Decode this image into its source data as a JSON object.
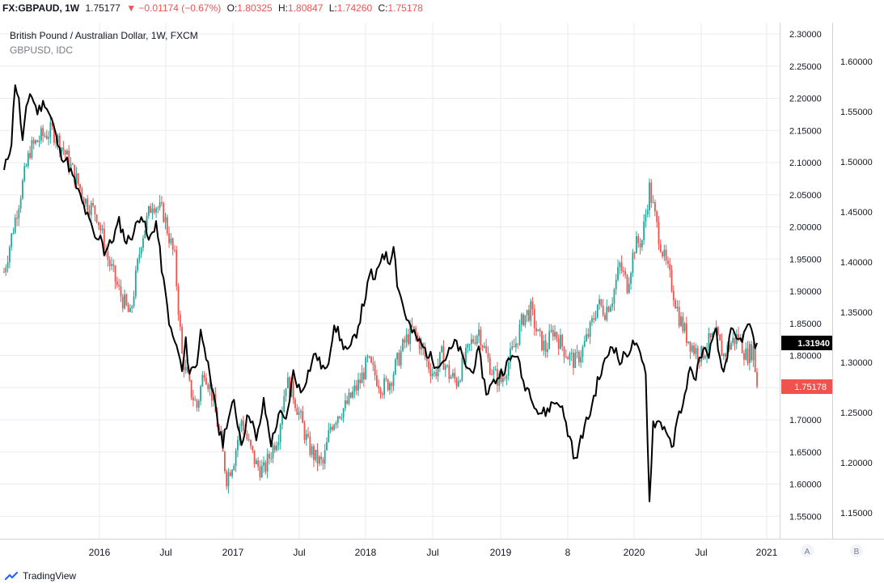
{
  "header": {
    "symbol": "FX:GBPAUD, 1W",
    "last": "1.75177",
    "change": "▼ −0.01174 (−0.67%)",
    "o_label": "O:",
    "o_value": "1.80325",
    "h_label": "H:",
    "h_value": "1.80847",
    "l_label": "L:",
    "l_value": "1.74260",
    "c_label": "C:",
    "c_value": "1.75178"
  },
  "legend": {
    "main_series": "British Pound / Australian Dollar, 1W, FXCM",
    "compare_series": "GBPUSD, IDC"
  },
  "badges": {
    "gbpusd_last": "1.31940",
    "gbpaud_last": "1.75178"
  },
  "scale_buttons": {
    "a": "A",
    "b": "B"
  },
  "branding": {
    "name": "TradingView"
  },
  "colors": {
    "up": "#26a69a",
    "down": "#ef5350",
    "compare": "#000000",
    "grid": "#e9ebf0"
  },
  "chart_data": {
    "type": "candlestick+line",
    "x_ticks": [
      "2016",
      "Jul",
      "2017",
      "Jul",
      "2018",
      "Jul",
      "2019",
      "8",
      "2020",
      "Jul",
      "2021"
    ],
    "left_axis": {
      "series": "GBPAUD",
      "ticks": [
        "2.30000",
        "2.25000",
        "2.20000",
        "2.15000",
        "2.10000",
        "2.05000",
        "2.00000",
        "1.95000",
        "1.90000",
        "1.85000",
        "1.80000",
        "1.75000",
        "1.70000",
        "1.65000",
        "1.60000",
        "1.55000"
      ],
      "range": [
        1.53,
        2.32
      ]
    },
    "right_axis": {
      "series": "GBPUSD",
      "ticks": [
        "1.60000",
        "1.55000",
        "1.50000",
        "1.45000",
        "1.40000",
        "1.35000",
        "1.30000",
        "1.25000",
        "1.20000",
        "1.15000"
      ],
      "range": [
        1.128,
        1.68
      ]
    },
    "gbpaud_weekly_close_anchors": [
      [
        0,
        1.93
      ],
      [
        8,
        2.04
      ],
      [
        14,
        2.12
      ],
      [
        20,
        2.14
      ],
      [
        26,
        2.15
      ],
      [
        32,
        2.12
      ],
      [
        38,
        2.08
      ],
      [
        44,
        2.04
      ],
      [
        50,
        2.02
      ],
      [
        56,
        1.95
      ],
      [
        62,
        1.9
      ],
      [
        68,
        1.86
      ],
      [
        74,
        1.98
      ],
      [
        80,
        2.04
      ],
      [
        86,
        2.02
      ],
      [
        92,
        1.95
      ],
      [
        96,
        1.8
      ],
      [
        100,
        1.75
      ],
      [
        104,
        1.72
      ],
      [
        108,
        1.78
      ],
      [
        112,
        1.74
      ],
      [
        116,
        1.68
      ],
      [
        120,
        1.61
      ],
      [
        124,
        1.64
      ],
      [
        128,
        1.7
      ],
      [
        132,
        1.66
      ],
      [
        136,
        1.63
      ],
      [
        140,
        1.62
      ],
      [
        144,
        1.65
      ],
      [
        148,
        1.68
      ],
      [
        152,
        1.76
      ],
      [
        156,
        1.74
      ],
      [
        160,
        1.7
      ],
      [
        164,
        1.66
      ],
      [
        168,
        1.64
      ],
      [
        172,
        1.63
      ],
      [
        176,
        1.69
      ],
      [
        180,
        1.71
      ],
      [
        184,
        1.72
      ],
      [
        188,
        1.74
      ],
      [
        192,
        1.76
      ],
      [
        196,
        1.79
      ],
      [
        200,
        1.77
      ],
      [
        204,
        1.75
      ],
      [
        208,
        1.76
      ],
      [
        212,
        1.79
      ],
      [
        216,
        1.82
      ],
      [
        220,
        1.84
      ],
      [
        224,
        1.82
      ],
      [
        228,
        1.79
      ],
      [
        232,
        1.77
      ],
      [
        236,
        1.8
      ],
      [
        240,
        1.77
      ],
      [
        244,
        1.76
      ],
      [
        248,
        1.79
      ],
      [
        252,
        1.82
      ],
      [
        256,
        1.84
      ],
      [
        260,
        1.8
      ],
      [
        264,
        1.77
      ],
      [
        268,
        1.76
      ],
      [
        272,
        1.79
      ],
      [
        276,
        1.82
      ],
      [
        280,
        1.86
      ],
      [
        284,
        1.87
      ],
      [
        288,
        1.83
      ],
      [
        292,
        1.81
      ],
      [
        296,
        1.84
      ],
      [
        300,
        1.82
      ],
      [
        304,
        1.8
      ],
      [
        308,
        1.79
      ],
      [
        312,
        1.81
      ],
      [
        316,
        1.84
      ],
      [
        320,
        1.88
      ],
      [
        324,
        1.87
      ],
      [
        328,
        1.89
      ],
      [
        332,
        1.94
      ],
      [
        336,
        1.91
      ],
      [
        340,
        1.97
      ],
      [
        344,
        1.98
      ],
      [
        348,
        2.06
      ],
      [
        352,
        2.0
      ],
      [
        356,
        1.95
      ],
      [
        360,
        1.91
      ],
      [
        364,
        1.86
      ],
      [
        368,
        1.83
      ],
      [
        372,
        1.81
      ],
      [
        376,
        1.8
      ],
      [
        380,
        1.82
      ],
      [
        384,
        1.83
      ],
      [
        388,
        1.8
      ],
      [
        392,
        1.82
      ],
      [
        396,
        1.83
      ],
      [
        400,
        1.8
      ],
      [
        404,
        1.81
      ],
      [
        406,
        1.75
      ]
    ],
    "gbpusd_weekly_close_anchors": [
      [
        0,
        1.49
      ],
      [
        4,
        1.52
      ],
      [
        6,
        1.58
      ],
      [
        8,
        1.56
      ],
      [
        10,
        1.52
      ],
      [
        12,
        1.55
      ],
      [
        14,
        1.57
      ],
      [
        18,
        1.55
      ],
      [
        22,
        1.56
      ],
      [
        26,
        1.54
      ],
      [
        30,
        1.51
      ],
      [
        34,
        1.5
      ],
      [
        38,
        1.48
      ],
      [
        42,
        1.46
      ],
      [
        46,
        1.44
      ],
      [
        50,
        1.42
      ],
      [
        52,
        1.43
      ],
      [
        54,
        1.41
      ],
      [
        58,
        1.42
      ],
      [
        62,
        1.44
      ],
      [
        66,
        1.42
      ],
      [
        70,
        1.43
      ],
      [
        74,
        1.45
      ],
      [
        78,
        1.42
      ],
      [
        82,
        1.44
      ],
      [
        86,
        1.38
      ],
      [
        90,
        1.33
      ],
      [
        94,
        1.31
      ],
      [
        96,
        1.29
      ],
      [
        98,
        1.32
      ],
      [
        100,
        1.29
      ],
      [
        104,
        1.3
      ],
      [
        106,
        1.33
      ],
      [
        108,
        1.32
      ],
      [
        112,
        1.27
      ],
      [
        114,
        1.26
      ],
      [
        116,
        1.23
      ],
      [
        118,
        1.22
      ],
      [
        120,
        1.24
      ],
      [
        124,
        1.26
      ],
      [
        128,
        1.22
      ],
      [
        132,
        1.25
      ],
      [
        134,
        1.24
      ],
      [
        136,
        1.22
      ],
      [
        140,
        1.26
      ],
      [
        144,
        1.22
      ],
      [
        146,
        1.23
      ],
      [
        148,
        1.25
      ],
      [
        152,
        1.24
      ],
      [
        156,
        1.29
      ],
      [
        160,
        1.27
      ],
      [
        164,
        1.29
      ],
      [
        168,
        1.31
      ],
      [
        170,
        1.3
      ],
      [
        174,
        1.29
      ],
      [
        178,
        1.34
      ],
      [
        182,
        1.32
      ],
      [
        186,
        1.31
      ],
      [
        190,
        1.33
      ],
      [
        194,
        1.36
      ],
      [
        198,
        1.39
      ],
      [
        200,
        1.38
      ],
      [
        204,
        1.41
      ],
      [
        208,
        1.4
      ],
      [
        210,
        1.42
      ],
      [
        212,
        1.38
      ],
      [
        216,
        1.35
      ],
      [
        220,
        1.33
      ],
      [
        224,
        1.32
      ],
      [
        228,
        1.31
      ],
      [
        232,
        1.3
      ],
      [
        236,
        1.3
      ],
      [
        240,
        1.31
      ],
      [
        244,
        1.32
      ],
      [
        248,
        1.3
      ],
      [
        252,
        1.29
      ],
      [
        256,
        1.31
      ],
      [
        260,
        1.27
      ],
      [
        264,
        1.28
      ],
      [
        268,
        1.29
      ],
      [
        272,
        1.3
      ],
      [
        276,
        1.31
      ],
      [
        280,
        1.28
      ],
      [
        284,
        1.27
      ],
      [
        288,
        1.25
      ],
      [
        292,
        1.25
      ],
      [
        296,
        1.26
      ],
      [
        300,
        1.26
      ],
      [
        304,
        1.23
      ],
      [
        306,
        1.22
      ],
      [
        308,
        1.2
      ],
      [
        312,
        1.23
      ],
      [
        316,
        1.25
      ],
      [
        320,
        1.28
      ],
      [
        324,
        1.3
      ],
      [
        328,
        1.32
      ],
      [
        332,
        1.3
      ],
      [
        336,
        1.31
      ],
      [
        340,
        1.32
      ],
      [
        344,
        1.3
      ],
      [
        346,
        1.29
      ],
      [
        348,
        1.16
      ],
      [
        350,
        1.24
      ],
      [
        354,
        1.24
      ],
      [
        358,
        1.23
      ],
      [
        360,
        1.21
      ],
      [
        364,
        1.25
      ],
      [
        368,
        1.27
      ],
      [
        370,
        1.3
      ],
      [
        372,
        1.28
      ],
      [
        376,
        1.31
      ],
      [
        380,
        1.31
      ],
      [
        384,
        1.33
      ],
      [
        386,
        1.3
      ],
      [
        388,
        1.29
      ],
      [
        392,
        1.33
      ],
      [
        396,
        1.32
      ],
      [
        400,
        1.33
      ],
      [
        402,
        1.34
      ],
      [
        404,
        1.32
      ],
      [
        406,
        1.3194
      ]
    ]
  }
}
